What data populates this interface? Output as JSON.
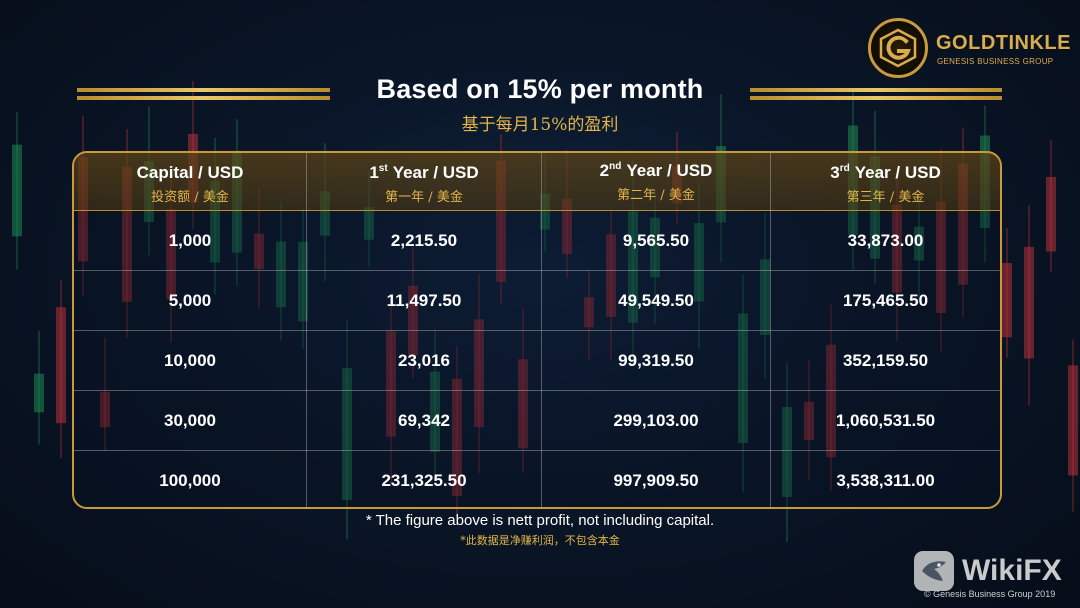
{
  "brand": {
    "name": "GOLDTINKLE",
    "tagline": "GENESIS BUSINESS GROUP"
  },
  "title": "Based on 15% per month",
  "subtitle": "基于每月15%的盈利",
  "table": {
    "headers": [
      {
        "en": "Capital / USD",
        "cn": "投资额 / 美金"
      },
      {
        "ordinal": "1",
        "suffix": "st",
        "en": "Year / USD",
        "cn": "第一年 / 美金"
      },
      {
        "ordinal": "2",
        "suffix": "nd",
        "en": "Year / USD",
        "cn": "第二年 / 美金"
      },
      {
        "ordinal": "3",
        "suffix": "rd",
        "en": "Year / USD",
        "cn": "第三年 / 美金"
      }
    ],
    "rows": [
      [
        "1,000",
        "2,215.50",
        "9,565.50",
        "33,873.00"
      ],
      [
        "5,000",
        "11,497.50",
        "49,549.50",
        "175,465.50"
      ],
      [
        "10,000",
        "23,016",
        "99,319.50",
        "352,159.50"
      ],
      [
        "30,000",
        "69,342",
        "299,103.00",
        "1,060,531.50"
      ],
      [
        "100,000",
        "231,325.50",
        "997,909.50",
        "3,538,311.00"
      ]
    ]
  },
  "footnote": "* The figure above is nett profit, not including capital.",
  "footnote_cn": "*此数据是净赚利润，不包含本金",
  "watermark": "WikiFX",
  "copyright": "© Genesis Business Group 2019",
  "colors": {
    "gold": "#c99a3c",
    "gold_text": "#e3b54a",
    "background": "#0a1628",
    "candle_green": "#1e8a55",
    "candle_red": "#b8323a"
  },
  "icons": [
    "goldtinkle-logo-icon",
    "wikifx-logo-icon"
  ]
}
